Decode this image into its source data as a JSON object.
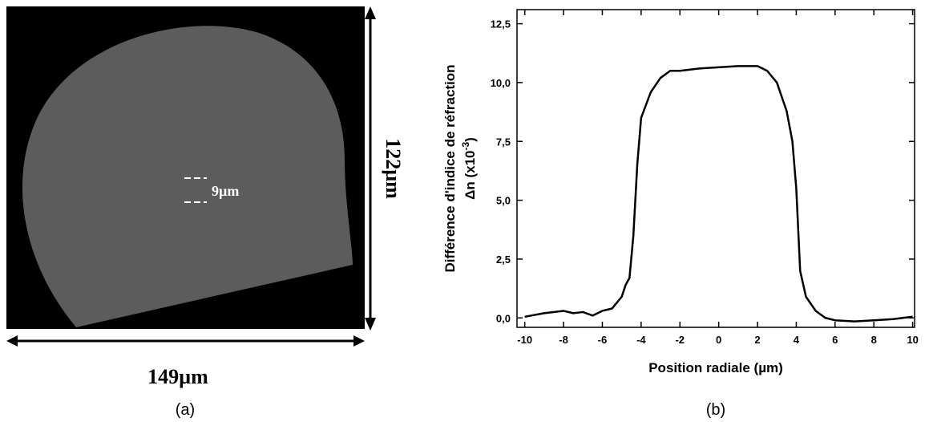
{
  "image_panel": {
    "caption": "(a)",
    "width_label": "149µm",
    "height_label": "122µm",
    "core_label": "9µm"
  },
  "chart_data": {
    "type": "line",
    "caption": "(b)",
    "y_label": "Différence d'indice de réfraction",
    "y_label_2": {
      "base": "Δn (x10",
      "sup": "-3",
      "end": ")"
    },
    "x_label": "Position radiale (µm)",
    "xlim": [
      -10.4,
      10.1
    ],
    "ylim": [
      -0.4,
      13.1
    ],
    "xticks": [
      -10,
      -8,
      -6,
      -4,
      -2,
      0,
      2,
      4,
      6,
      8,
      10
    ],
    "yticks": [
      {
        "value": 0,
        "label": "0,0"
      },
      {
        "value": 2.5,
        "label": "2,5"
      },
      {
        "value": 5,
        "label": "5,0"
      },
      {
        "value": 7.5,
        "label": "7,5"
      },
      {
        "value": 10,
        "label": "10,0"
      },
      {
        "value": 12.5,
        "label": "12,5"
      }
    ],
    "color": "#000000",
    "x": [
      -10,
      -9,
      -8,
      -7.5,
      -7,
      -6.5,
      -6,
      -5.5,
      -5,
      -4.8,
      -4.6,
      -4.4,
      -4.2,
      -4,
      -3.5,
      -3,
      -2.5,
      -2,
      -1,
      0,
      1,
      2,
      2.5,
      3,
      3.5,
      3.8,
      4,
      4.2,
      4.5,
      5,
      5.5,
      6,
      7,
      8,
      9,
      10
    ],
    "values": [
      0.05,
      0.2,
      0.3,
      0.2,
      0.25,
      0.1,
      0.3,
      0.4,
      0.9,
      1.4,
      1.7,
      3.5,
      6.5,
      8.5,
      9.6,
      10.2,
      10.5,
      10.5,
      10.6,
      10.65,
      10.7,
      10.7,
      10.5,
      10.0,
      8.8,
      7.5,
      5.5,
      2.0,
      0.9,
      0.3,
      0.0,
      -0.1,
      -0.15,
      -0.1,
      -0.05,
      0.05
    ]
  }
}
